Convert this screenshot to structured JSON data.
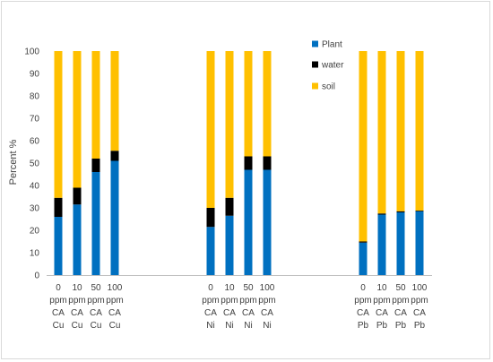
{
  "chart_data": {
    "type": "bar",
    "stacked": true,
    "ylabel": "Percent %",
    "ylim": [
      0,
      100
    ],
    "ytick_step": 10,
    "grid": false,
    "legend_position": "top-right",
    "categories": [
      [
        "0",
        "ppm",
        "CA",
        "Cu"
      ],
      [
        "10",
        "ppm",
        "CA",
        "Cu"
      ],
      [
        "50",
        "ppm",
        "CA",
        "Cu"
      ],
      [
        "100",
        "ppm",
        "CA",
        "Cu"
      ],
      [
        "0",
        "ppm",
        "CA",
        "Ni"
      ],
      [
        "10",
        "ppm",
        "CA",
        "Ni"
      ],
      [
        "50",
        "ppm",
        "CA",
        "Ni"
      ],
      [
        "100",
        "ppm",
        "CA",
        "Ni"
      ],
      [
        "0",
        "ppm",
        "CA",
        "Pb"
      ],
      [
        "10",
        "ppm",
        "CA",
        "Pb"
      ],
      [
        "50",
        "ppm",
        "CA",
        "Pb"
      ],
      [
        "100",
        "ppm",
        "CA",
        "Pb"
      ]
    ],
    "series": [
      {
        "name": "Plant",
        "color": "#0070c0",
        "values": [
          26,
          31.5,
          46,
          51,
          21.5,
          26.5,
          47,
          47,
          14.5,
          27,
          28,
          28.5
        ]
      },
      {
        "name": "water",
        "color": "#000000",
        "values": [
          8.5,
          7.5,
          6,
          4.5,
          8.5,
          8,
          6,
          6,
          0.5,
          0.5,
          0.5,
          0.3
        ]
      },
      {
        "name": "soil",
        "color": "#ffc000",
        "values": [
          65.5,
          61,
          48,
          44.5,
          70,
          65.5,
          47,
          47,
          85,
          72.5,
          71.5,
          71.2
        ]
      }
    ]
  }
}
